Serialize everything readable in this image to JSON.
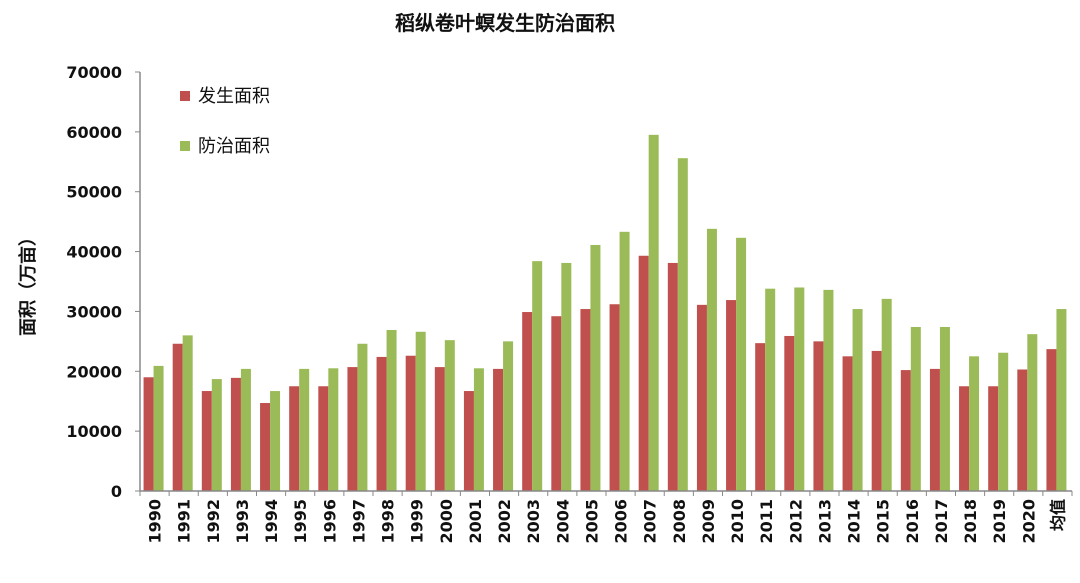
{
  "chart_data": {
    "type": "bar",
    "title": "稻纵卷叶螟发生防治面积",
    "xlabel": "",
    "ylabel": "面积（万亩）",
    "ylim": [
      0,
      70000
    ],
    "yticks": [
      "0",
      "10000",
      "20000",
      "30000",
      "40000",
      "50000",
      "60000",
      "70000"
    ],
    "grid": false,
    "legend_position": "top-left",
    "categories": [
      "1990",
      "1991",
      "1992",
      "1993",
      "1994",
      "1995",
      "1996",
      "1997",
      "1998",
      "1999",
      "2000",
      "2001",
      "2002",
      "2003",
      "2004",
      "2005",
      "2006",
      "2007",
      "2008",
      "2009",
      "2010",
      "2011",
      "2012",
      "2013",
      "2014",
      "2015",
      "2016",
      "2017",
      "2018",
      "2019",
      "2020",
      "均值"
    ],
    "series": [
      {
        "name": "发生面积",
        "color": "#c0504d",
        "values": [
          19000,
          24600,
          16700,
          18900,
          14700,
          17500,
          17500,
          20700,
          22400,
          22600,
          20700,
          16700,
          20400,
          29900,
          29200,
          30400,
          31200,
          39300,
          38100,
          31100,
          31900,
          24700,
          25900,
          25000,
          22500,
          23400,
          20200,
          20400,
          17500,
          17500,
          20300,
          23700
        ]
      },
      {
        "name": "防治面积",
        "color": "#9bbb59",
        "values": [
          20900,
          26000,
          18700,
          20400,
          16700,
          20400,
          20500,
          24600,
          26900,
          26600,
          25200,
          20500,
          25000,
          38400,
          38100,
          41100,
          43300,
          59500,
          55600,
          43800,
          42300,
          33800,
          34000,
          33600,
          30400,
          32100,
          27400,
          27400,
          22500,
          23100,
          26200,
          30400
        ]
      }
    ]
  }
}
